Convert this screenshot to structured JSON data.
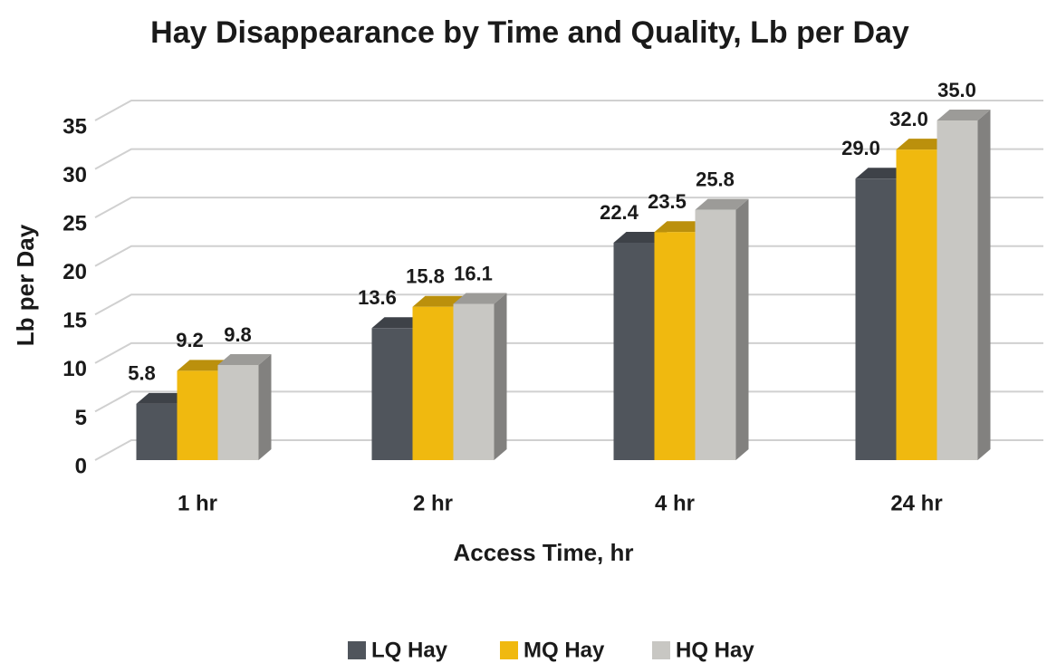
{
  "chart_data": {
    "type": "bar3d",
    "title": "Hay Disappearance by Time and Quality, Lb per Day",
    "xlabel": "Access Time, hr",
    "ylabel": "Lb per Day",
    "categories": [
      "1 hr",
      "2 hr",
      "4 hr",
      "24 hr"
    ],
    "series": [
      {
        "name": "LQ Hay",
        "color": "#50555c",
        "values": [
          5.8,
          13.6,
          22.4,
          29.0
        ],
        "value_labels": [
          "5.8",
          "13.6",
          "22.4",
          "29.0"
        ]
      },
      {
        "name": "MQ Hay",
        "color": "#f0b90f",
        "values": [
          9.2,
          15.8,
          23.5,
          32.0
        ],
        "value_labels": [
          "9.2",
          "15.8",
          "23.5",
          "32.0"
        ]
      },
      {
        "name": "HQ Hay",
        "color": "#c8c7c3",
        "values": [
          9.8,
          16.1,
          25.8,
          35.0
        ],
        "value_labels": [
          "9.8",
          "16.1",
          "25.8",
          "35.0"
        ]
      }
    ],
    "ylim": [
      0,
      35
    ],
    "yticks": [
      0,
      5,
      10,
      15,
      20,
      25,
      30,
      35
    ],
    "grid": true,
    "legend": "bottom"
  }
}
